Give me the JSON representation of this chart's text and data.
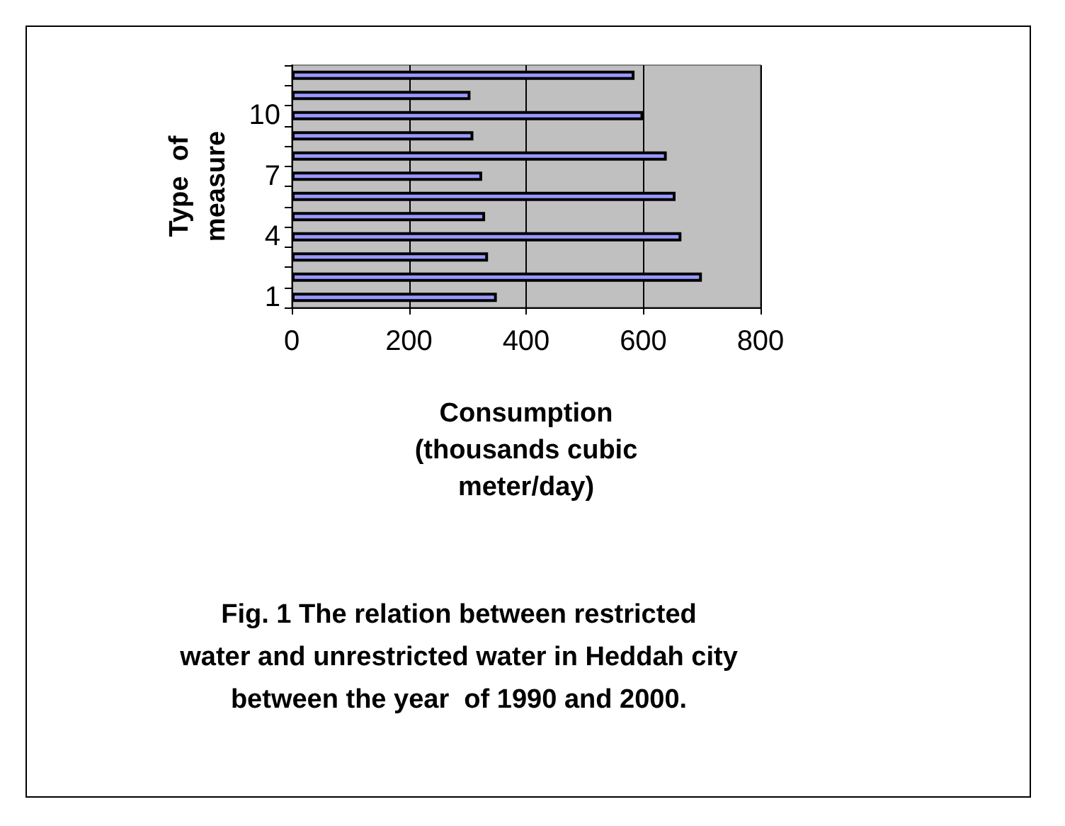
{
  "chart_data": {
    "type": "bar",
    "orientation": "horizontal",
    "title": "Fig. 1 The relation between restricted\nwater and unrestricted water in Heddah city\nbetween the year  of 1990 and 2000.",
    "xlabel": "Consumption\n(thousands cubic\nmeter/day)",
    "ylabel": "Type  of\nmeasure",
    "categories": [
      null,
      null,
      "10",
      null,
      null,
      "7",
      null,
      null,
      "4",
      null,
      null,
      "1"
    ],
    "values": [
      585,
      305,
      600,
      310,
      640,
      325,
      655,
      330,
      665,
      335,
      700,
      350
    ],
    "color": "#9999ff",
    "xlim": [
      0,
      800
    ],
    "xticks": [
      0,
      200,
      400,
      600,
      800
    ],
    "grid": "x"
  }
}
